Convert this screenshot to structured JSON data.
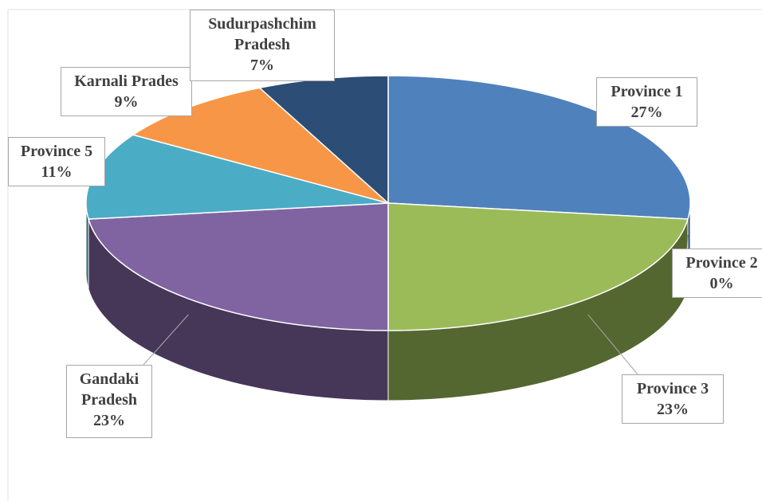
{
  "chart_data": {
    "type": "pie",
    "categories": [
      "Province 1",
      "Province 2",
      "Province 3",
      "Gandaki Pradesh",
      "Province 5",
      "Karnali Prades",
      "Sudurpashchim Pradesh"
    ],
    "values": [
      27,
      0,
      23,
      23,
      11,
      9,
      7
    ],
    "value_labels": [
      "27%",
      "0%",
      "23%",
      "23%",
      "11%",
      "9%",
      "7%"
    ],
    "colors": [
      "#4f81bd",
      "#c0504d",
      "#9bbb59",
      "#8064a2",
      "#4bacc6",
      "#f79646",
      "#2c4d75"
    ]
  }
}
